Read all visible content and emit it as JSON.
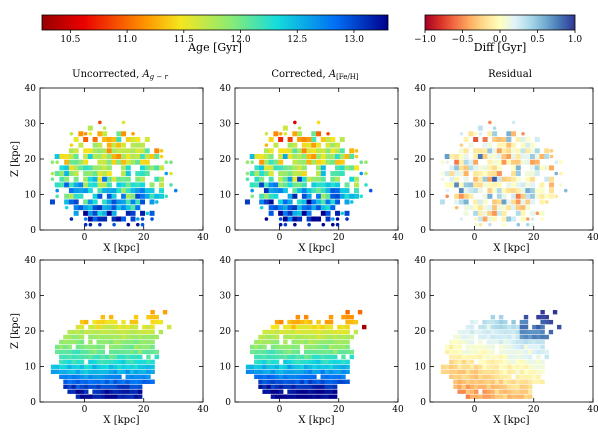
{
  "figure": {
    "colorbars": [
      {
        "id": "age",
        "label": "Age [Gyr]",
        "colormap": "jet",
        "range": [
          10.25,
          13.3
        ],
        "ticks": [
          "10.5",
          "11.0",
          "11.5",
          "12.0",
          "12.5",
          "13.0"
        ],
        "tick_values": [
          10.5,
          11.0,
          11.5,
          12.0,
          12.5,
          13.0
        ]
      },
      {
        "id": "diff",
        "label": "Diff [Gyr]",
        "colormap": "RdYlBu",
        "range": [
          -1.0,
          1.0
        ],
        "ticks": [
          "−1.0",
          "−0.5",
          "0.0",
          "0.5",
          "1.0"
        ],
        "tick_values": [
          -1.0,
          -0.5,
          0.0,
          0.5,
          1.0
        ]
      }
    ],
    "panels": [
      {
        "col": 0,
        "row": 0,
        "title_main": "Uncorrected, ",
        "title_sym": "A",
        "title_sub": "g − r",
        "xlabel": "X [kpc]",
        "ylabel": "Z [kpc]",
        "cmap": "age"
      },
      {
        "col": 1,
        "row": 0,
        "title_main": "Corrected, ",
        "title_sym": "A",
        "title_sub": "[Fe/H]",
        "xlabel": "X [kpc]",
        "ylabel": "",
        "cmap": "age"
      },
      {
        "col": 2,
        "row": 0,
        "title_main": "Residual",
        "title_sym": "",
        "title_sub": "",
        "xlabel": "X [kpc]",
        "ylabel": "",
        "cmap": "diff"
      },
      {
        "col": 0,
        "row": 1,
        "title_main": "",
        "title_sym": "",
        "title_sub": "",
        "xlabel": "X [kpc]",
        "ylabel": "Z [kpc]",
        "cmap": "age"
      },
      {
        "col": 1,
        "row": 1,
        "title_main": "",
        "title_sym": "",
        "title_sub": "",
        "xlabel": "X [kpc]",
        "ylabel": "",
        "cmap": "age"
      },
      {
        "col": 2,
        "row": 1,
        "title_main": "",
        "title_sym": "",
        "title_sub": "",
        "xlabel": "X [kpc]",
        "ylabel": "",
        "cmap": "diff"
      }
    ],
    "axes": {
      "xlim": [
        -15,
        40
      ],
      "ylim": [
        0,
        40
      ],
      "xticks": [
        0,
        20,
        40
      ],
      "xtick_labels": [
        "0",
        "20",
        "40"
      ],
      "yticks": [
        0,
        10,
        20,
        30,
        40
      ],
      "ytick_labels": [
        "0",
        "10",
        "20",
        "30",
        "40"
      ]
    }
  },
  "chart_data": [
    {
      "type": "heatmap",
      "title": "Uncorrected, A_{g−r}",
      "xlabel": "X [kpc]",
      "ylabel": "Z [kpc]",
      "xlim": [
        -15,
        40
      ],
      "ylim": [
        0,
        40
      ],
      "color_quantity": "Age [Gyr]",
      "description_values": {
        "vmin": 10.25,
        "vmax": 13.3
      },
      "extent": {
        "x": [
          -14,
          34
        ],
        "z": [
          2,
          34
        ]
      },
      "age_by_z": [
        {
          "z": 3,
          "age": 13.0
        },
        {
          "z": 8,
          "age": 12.5
        },
        {
          "z": 15,
          "age": 12.0
        },
        {
          "z": 25,
          "age": 11.5
        },
        {
          "z": 32,
          "age": 11.2
        }
      ],
      "pixel_size": "sparse, ~1.5 kpc"
    },
    {
      "type": "heatmap",
      "title": "Corrected, A_[Fe/H]",
      "xlabel": "X [kpc]",
      "ylabel": "",
      "xlim": [
        -15,
        40
      ],
      "ylim": [
        0,
        40
      ],
      "color_quantity": "Age [Gyr]",
      "extent": {
        "x": [
          -14,
          34
        ],
        "z": [
          2,
          34
        ]
      },
      "age_by_z": [
        {
          "z": 3,
          "age": 13.1
        },
        {
          "z": 8,
          "age": 12.6
        },
        {
          "z": 15,
          "age": 12.0
        },
        {
          "z": 25,
          "age": 11.5
        },
        {
          "z": 32,
          "age": 11.0
        }
      ]
    },
    {
      "type": "heatmap",
      "title": "Residual",
      "xlabel": "X [kpc]",
      "ylabel": "",
      "xlim": [
        -15,
        40
      ],
      "ylim": [
        0,
        40
      ],
      "color_quantity": "Diff [Gyr]",
      "range": [
        -1.0,
        1.0
      ],
      "extent": {
        "x": [
          -14,
          34
        ],
        "z": [
          2,
          34
        ]
      },
      "mean_diff": 0.0
    },
    {
      "type": "heatmap",
      "title": "",
      "xlabel": "X [kpc]",
      "ylabel": "Z [kpc]",
      "xlim": [
        -15,
        40
      ],
      "ylim": [
        0,
        40
      ],
      "color_quantity": "Age [Gyr]",
      "extent": {
        "x": [
          -12,
          29
        ],
        "z": [
          2,
          27
        ]
      },
      "age_by_z": [
        {
          "z": 3,
          "age": 13.2
        },
        {
          "z": 8,
          "age": 12.6
        },
        {
          "z": 13,
          "age": 12.1
        },
        {
          "z": 20,
          "age": 11.7
        },
        {
          "z": 25,
          "age": 11.2
        }
      ]
    },
    {
      "type": "heatmap",
      "title": "",
      "xlabel": "X [kpc]",
      "ylabel": "",
      "xlim": [
        -15,
        40
      ],
      "ylim": [
        0,
        40
      ],
      "color_quantity": "Age [Gyr]",
      "extent": {
        "x": [
          -12,
          29
        ],
        "z": [
          2,
          27
        ]
      },
      "age_by_z": [
        {
          "z": 3,
          "age": 13.3
        },
        {
          "z": 8,
          "age": 12.7
        },
        {
          "z": 13,
          "age": 12.1
        },
        {
          "z": 20,
          "age": 11.6
        },
        {
          "z": 25,
          "age": 11.0
        }
      ],
      "notable": "red pixels (~10.3 Gyr) near X≈28, Z≈22"
    },
    {
      "type": "heatmap",
      "title": "",
      "xlabel": "X [kpc]",
      "ylabel": "",
      "xlim": [
        -15,
        40
      ],
      "ylim": [
        0,
        40
      ],
      "color_quantity": "Diff [Gyr]",
      "range": [
        -1.0,
        1.0
      ],
      "extent": {
        "x": [
          -12,
          29
        ],
        "z": [
          2,
          27
        ]
      },
      "pattern": "negative (≈−0.5) on the left/lower side, positive (≈+0.5) toward upper right"
    }
  ]
}
